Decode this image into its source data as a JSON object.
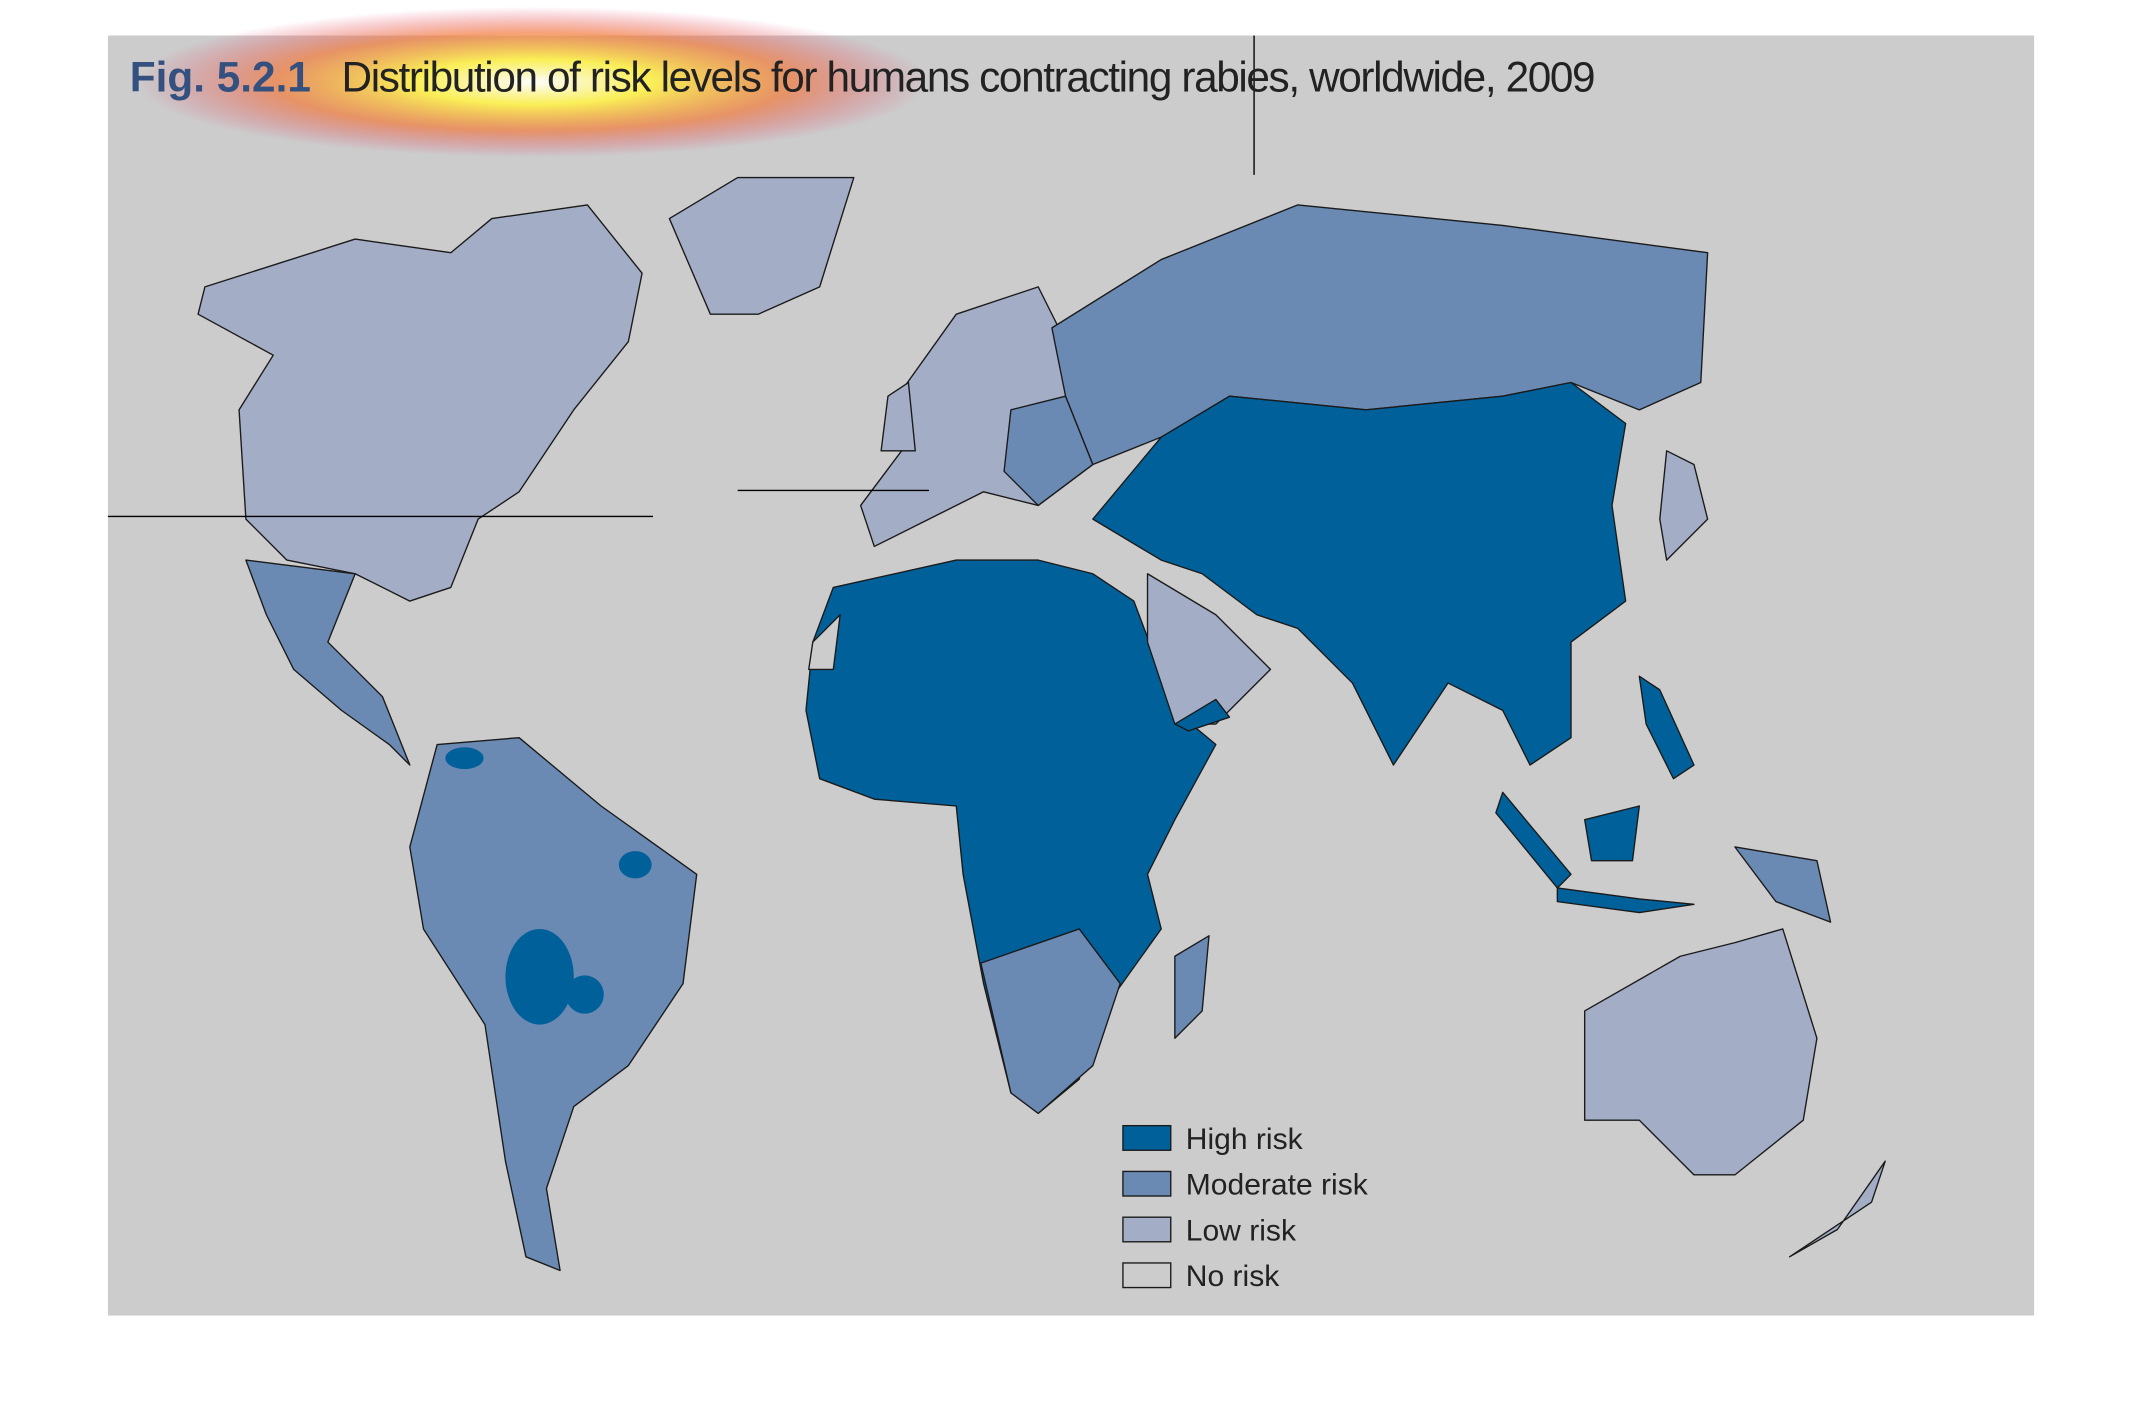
{
  "title": {
    "figure_number": "Fig. 5.2.1",
    "text": "Distribution of risk levels for humans contracting rabies, worldwide, 2009"
  },
  "legend": {
    "items": [
      {
        "label": "High risk",
        "color": "#00609a"
      },
      {
        "label": "Moderate risk",
        "color": "#6a89b3"
      },
      {
        "label": "Low risk",
        "color": "#a3adc6"
      },
      {
        "label": "No risk",
        "color": "#cccccc"
      }
    ]
  }
}
